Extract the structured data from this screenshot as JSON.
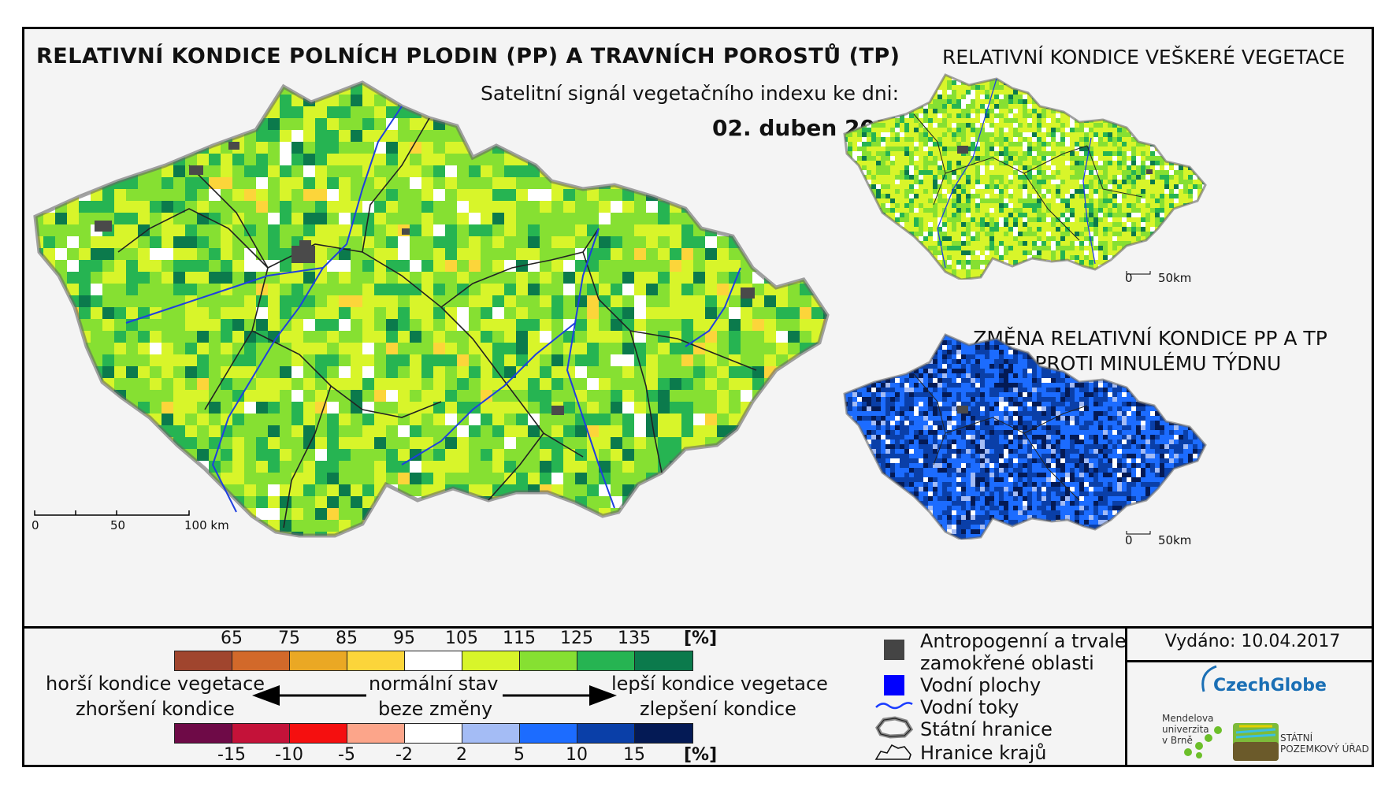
{
  "titles": {
    "main": "RELATIVNÍ KONDICE POLNÍCH PLODIN (PP) A TRAVNÍCH POROSTŮ (TP)",
    "subtitle": "Satelitní signál vegetačního indexu ke dni:",
    "date": "02. duben 2017",
    "right_top": "RELATIVNÍ KONDICE VEŠKERÉ VEGETACE",
    "right_change_line1": "ZMĚNA RELATIVNÍ KONDICE PP A TP",
    "right_change_line2": "OPROTI MINULÉMU TÝDNU"
  },
  "scalebar_main": {
    "ticks": [
      "0",
      "50",
      "100 km"
    ]
  },
  "scalebar_small": {
    "ticks": [
      "0",
      "50km"
    ]
  },
  "legend_condition": {
    "ticks": [
      "65",
      "75",
      "85",
      "95",
      "105",
      "115",
      "125",
      "135"
    ],
    "unit": "[%]",
    "colors": [
      "#a0452e",
      "#d2692a",
      "#eaa824",
      "#fcd53a",
      "#ffffff",
      "#d8f52a",
      "#86e032",
      "#26b452",
      "#0b7a4c"
    ]
  },
  "legend_change": {
    "ticks": [
      "-15",
      "-10",
      "-5",
      "-2",
      "2",
      "5",
      "10",
      "15"
    ],
    "unit": "[%]",
    "colors": [
      "#6e0a47",
      "#c41239",
      "#f50f0f",
      "#fca58a",
      "#ffffff",
      "#a4bcf5",
      "#1c6cff",
      "#0a3fa8",
      "#041a55"
    ]
  },
  "legend_text": {
    "worse_line1": "horší kondice vegetace",
    "worse_line2": "zhoršení kondice",
    "normal_line1": "normální stav",
    "normal_line2": "beze změny",
    "better_line1": "lepší kondice vegetace",
    "better_line2": "zlepšení kondice"
  },
  "legend_symbols": {
    "anthropogenic_line1": "Antropogenní a trvale",
    "anthropogenic_line2": "zamokřené oblasti",
    "water_bodies": "Vodní plochy",
    "water_courses": "Vodní toky",
    "state_border": "Státní hranice",
    "region_border": "Hranice krajů",
    "colors": {
      "anthropogenic": "#444444",
      "water_bodies": "#0000ff",
      "water_courses": "#1a3cff"
    }
  },
  "issued": "Vydáno: 10.04.2017",
  "logos": {
    "czechglobe": "CzechGlobe",
    "mendel_line1": "Mendelova",
    "mendel_line2": "univerzita",
    "mendel_line3": "v Brně",
    "spu_line1": "STÁTNÍ",
    "spu_line2": "POZEMKOVÝ ÚŘAD"
  }
}
